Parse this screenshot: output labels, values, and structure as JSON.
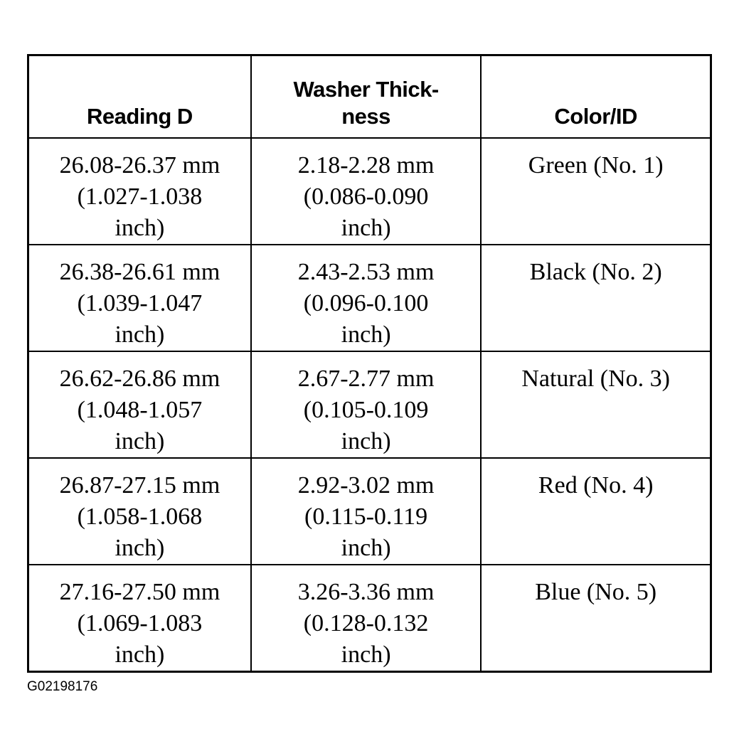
{
  "table": {
    "headers": [
      "Reading D",
      "Washer Thick-ness",
      "Color/ID"
    ],
    "header_lines": [
      [
        "Reading D"
      ],
      [
        "Washer Thick-",
        "ness"
      ],
      [
        "Color/ID"
      ]
    ],
    "rows": [
      {
        "reading": [
          "26.08-26.37 mm",
          "(1.027-1.038",
          "inch)"
        ],
        "thickness": [
          "2.18-2.28 mm",
          "(0.086-0.090",
          "inch)"
        ],
        "color": "Green (No. 1)"
      },
      {
        "reading": [
          "26.38-26.61 mm",
          "(1.039-1.047",
          "inch)"
        ],
        "thickness": [
          "2.43-2.53 mm",
          "(0.096-0.100",
          "inch)"
        ],
        "color": "Black (No. 2)"
      },
      {
        "reading": [
          "26.62-26.86 mm",
          "(1.048-1.057",
          "inch)"
        ],
        "thickness": [
          "2.67-2.77 mm",
          "(0.105-0.109",
          "inch)"
        ],
        "color": "Natural (No. 3)"
      },
      {
        "reading": [
          "26.87-27.15 mm",
          "(1.058-1.068",
          "inch)"
        ],
        "thickness": [
          "2.92-3.02 mm",
          "(0.115-0.119",
          "inch)"
        ],
        "color": "Red (No. 4)"
      },
      {
        "reading": [
          "27.16-27.50 mm",
          "(1.069-1.083",
          "inch)"
        ],
        "thickness": [
          "3.26-3.36 mm",
          "(0.128-0.132",
          "inch)"
        ],
        "color": "Blue (No. 5)"
      }
    ]
  },
  "figure_id": "G02198176"
}
